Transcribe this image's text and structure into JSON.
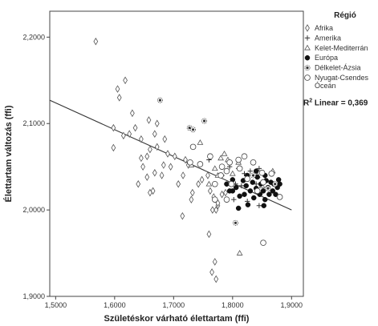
{
  "chart_data": {
    "type": "scatter",
    "xlabel": "Születéskor várható élettartam (ffi)",
    "ylabel": "Élettartam változás (ffi)",
    "xlim": [
      1.49,
      1.92
    ],
    "ylim": [
      1.9,
      2.23
    ],
    "xticks": [
      "1,5000",
      "1,6000",
      "1,7000",
      "1,8000",
      "1,9000"
    ],
    "yticks": [
      "1,9000",
      "2,0000",
      "2,1000",
      "2,2000"
    ],
    "grid": false,
    "legend_placement": "right",
    "legend_title": "Régió",
    "fit_line": {
      "label_prefix": "R",
      "label_sup": "2",
      "label_rest": " Linear = 0,369",
      "x": [
        1.49,
        1.9
      ],
      "y": [
        2.127,
        2.0
      ]
    },
    "series": [
      {
        "name": "Afrika",
        "marker": "diamond",
        "points": [
          [
            1.568,
            2.195
          ],
          [
            1.605,
            2.14
          ],
          [
            1.618,
            2.15
          ],
          [
            1.608,
            2.13
          ],
          [
            1.63,
            2.112
          ],
          [
            1.598,
            2.095
          ],
          [
            1.625,
            2.088
          ],
          [
            1.615,
            2.086
          ],
          [
            1.645,
            2.082
          ],
          [
            1.658,
            2.104
          ],
          [
            1.598,
            2.072
          ],
          [
            1.635,
            2.095
          ],
          [
            1.672,
            2.1
          ],
          [
            1.668,
            2.088
          ],
          [
            1.685,
            2.082
          ],
          [
            1.672,
            2.073
          ],
          [
            1.66,
            2.07
          ],
          [
            1.655,
            2.062
          ],
          [
            1.645,
            2.06
          ],
          [
            1.69,
            2.065
          ],
          [
            1.702,
            2.062
          ],
          [
            1.72,
            2.058
          ],
          [
            1.725,
            2.052
          ],
          [
            1.695,
            2.05
          ],
          [
            1.683,
            2.052
          ],
          [
            1.668,
            2.043
          ],
          [
            1.655,
            2.038
          ],
          [
            1.648,
            2.05
          ],
          [
            1.64,
            2.03
          ],
          [
            1.665,
            2.022
          ],
          [
            1.66,
            2.02
          ],
          [
            1.708,
            2.03
          ],
          [
            1.716,
            2.04
          ],
          [
            1.732,
            2.02
          ],
          [
            1.73,
            2.012
          ],
          [
            1.742,
            2.03
          ],
          [
            1.758,
            2.04
          ],
          [
            1.762,
            2.022
          ],
          [
            1.768,
            2.015
          ],
          [
            1.775,
            2.005
          ],
          [
            1.766,
            2.0
          ],
          [
            1.782,
            2.018
          ],
          [
            1.772,
            2.0
          ],
          [
            1.715,
            1.993
          ],
          [
            1.76,
            1.972
          ],
          [
            1.77,
            1.94
          ],
          [
            1.765,
            1.928
          ],
          [
            1.772,
            1.92
          ],
          [
            1.788,
            2.02
          ],
          [
            1.748,
            2.035
          ],
          [
            1.68,
            2.04
          ],
          [
            1.775,
            2.008
          ]
        ]
      },
      {
        "name": "Amerika",
        "marker": "plus",
        "points": [
          [
            1.76,
            2.058
          ],
          [
            1.782,
            2.04
          ],
          [
            1.795,
            2.05
          ],
          [
            1.805,
            2.03
          ],
          [
            1.81,
            2.048
          ],
          [
            1.82,
            2.042
          ],
          [
            1.825,
            2.01
          ],
          [
            1.835,
            2.04
          ],
          [
            1.84,
            2.03
          ],
          [
            1.845,
            2.005
          ],
          [
            1.85,
            2.02
          ],
          [
            1.855,
            2.035
          ],
          [
            1.83,
            2.045
          ],
          [
            1.815,
            2.028
          ],
          [
            1.802,
            2.012
          ],
          [
            1.79,
            2.03
          ],
          [
            1.845,
            2.048
          ]
        ]
      },
      {
        "name": "Kelet-Mediterrán",
        "marker": "triangle",
        "points": [
          [
            1.745,
            2.078
          ],
          [
            1.78,
            2.06
          ],
          [
            1.786,
            2.065
          ],
          [
            1.792,
            2.058
          ],
          [
            1.81,
            2.055
          ],
          [
            1.8,
            2.042
          ],
          [
            1.77,
            2.048
          ],
          [
            1.775,
            2.04
          ],
          [
            1.812,
            1.95
          ],
          [
            1.842,
            2.04
          ],
          [
            1.85,
            2.028
          ],
          [
            1.868,
            2.045
          ],
          [
            1.73,
            2.052
          ],
          [
            1.76,
            2.03
          ]
        ]
      },
      {
        "name": "Európa",
        "marker": "filled-circle",
        "points": [
          [
            1.8,
            2.022
          ],
          [
            1.806,
            2.026
          ],
          [
            1.812,
            2.016
          ],
          [
            1.818,
            2.034
          ],
          [
            1.82,
            2.018
          ],
          [
            1.823,
            2.028
          ],
          [
            1.826,
            2.006
          ],
          [
            1.83,
            2.022
          ],
          [
            1.834,
            2.032
          ],
          [
            1.836,
            2.014
          ],
          [
            1.84,
            2.025
          ],
          [
            1.842,
            2.038
          ],
          [
            1.846,
            2.018
          ],
          [
            1.848,
            2.03
          ],
          [
            1.852,
            2.022
          ],
          [
            1.855,
            2.012
          ],
          [
            1.857,
            2.034
          ],
          [
            1.86,
            2.026
          ],
          [
            1.862,
            2.018
          ],
          [
            1.865,
            2.032
          ],
          [
            1.868,
            2.022
          ],
          [
            1.87,
            2.03
          ],
          [
            1.873,
            2.018
          ],
          [
            1.876,
            2.026
          ],
          [
            1.878,
            2.035
          ],
          [
            1.88,
            2.03
          ],
          [
            1.855,
            2.04
          ],
          [
            1.84,
            2.045
          ],
          [
            1.825,
            2.04
          ],
          [
            1.81,
            2.002
          ],
          [
            1.795,
            2.022
          ],
          [
            1.79,
            2.03
          ],
          [
            1.8,
            2.035
          ],
          [
            1.853,
            2.005
          ]
        ]
      },
      {
        "name": "Délkelet-Ázsia",
        "marker": "starburst",
        "points": [
          [
            1.677,
            2.127
          ],
          [
            1.727,
            2.095
          ],
          [
            1.733,
            2.093
          ],
          [
            1.752,
            2.103
          ],
          [
            1.805,
            1.985
          ],
          [
            1.835,
            2.04
          ],
          [
            1.86,
            2.025
          ],
          [
            1.872,
            2.03
          ]
        ]
      },
      {
        "name": "Nyugat-Csendes Óceán",
        "marker": "open-circle",
        "points": [
          [
            1.733,
            2.073
          ],
          [
            1.728,
            2.055
          ],
          [
            1.745,
            2.053
          ],
          [
            1.762,
            2.062
          ],
          [
            1.782,
            2.05
          ],
          [
            1.79,
            2.045
          ],
          [
            1.81,
            2.058
          ],
          [
            1.835,
            2.055
          ],
          [
            1.825,
            2.036
          ],
          [
            1.85,
            2.043
          ],
          [
            1.798,
            2.03
          ],
          [
            1.812,
            2.048
          ],
          [
            1.842,
            2.022
          ],
          [
            1.78,
            2.04
          ],
          [
            1.852,
            2.032
          ],
          [
            1.866,
            2.042
          ],
          [
            1.88,
            2.015
          ],
          [
            1.852,
            1.962
          ],
          [
            1.77,
            2.012
          ],
          [
            1.77,
            2.03
          ],
          [
            1.82,
            2.062
          ],
          [
            1.795,
            2.055
          ],
          [
            1.79,
            2.012
          ]
        ]
      }
    ]
  }
}
